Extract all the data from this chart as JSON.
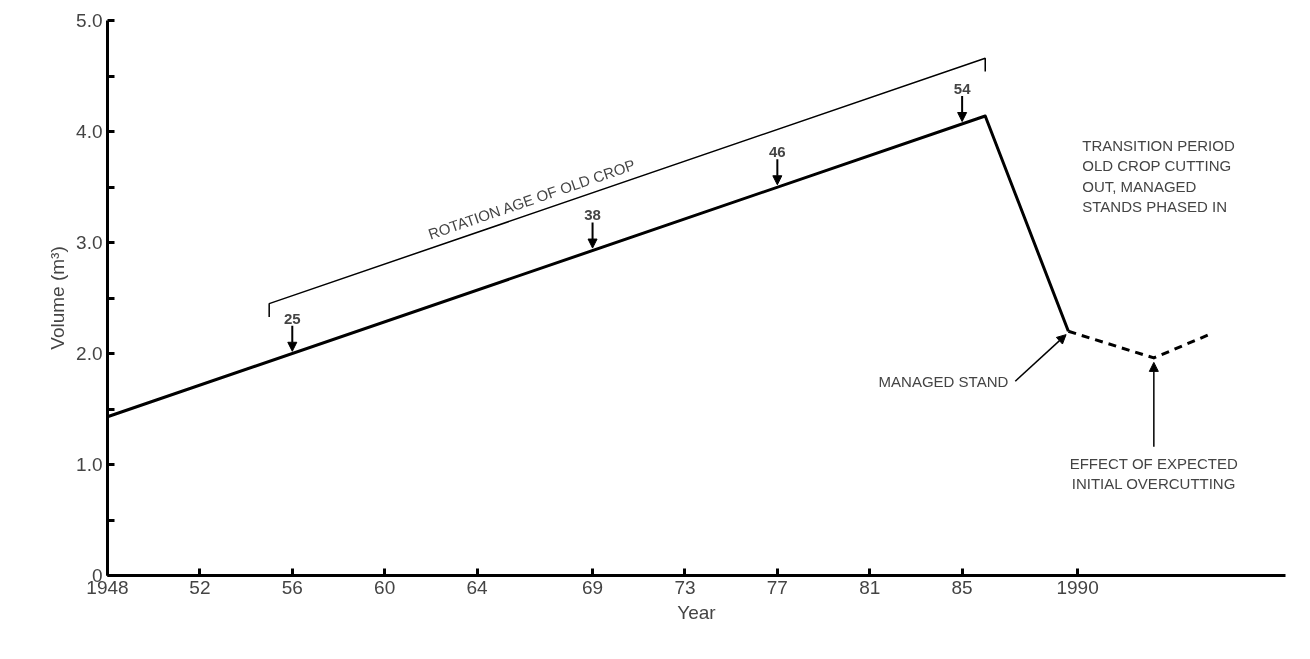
{
  "chart_data": {
    "type": "line",
    "xlabel": "Year",
    "ylabel": "Volume (m³)",
    "series": [
      {
        "color": "#000000",
        "line_style": "solid",
        "x": [
          1948,
          1986,
          1989.6
        ],
        "values": [
          1.43,
          4.14,
          2.2
        ]
      },
      {
        "color": "#000000",
        "line_style": "dashed",
        "x": [
          1989.6,
          1993.3,
          1995.8
        ],
        "values": [
          2.2,
          1.96,
          2.18
        ]
      }
    ],
    "xlim": [
      1948,
      1999
    ],
    "ylim": [
      0,
      5
    ],
    "xticks": [
      1948,
      {
        "value": 1952,
        "label": "52"
      },
      {
        "value": 1956,
        "label": "56"
      },
      {
        "value": 1960,
        "label": "60"
      },
      {
        "value": 1964,
        "label": "64"
      },
      {
        "value": 1969,
        "label": "69"
      },
      {
        "value": 1973,
        "label": "73"
      },
      {
        "value": 1977,
        "label": "77"
      },
      {
        "value": 1981,
        "label": "81"
      },
      {
        "value": 1985,
        "label": "85"
      },
      1990
    ],
    "yticks": [
      {
        "value": 0,
        "label": "0"
      },
      {
        "value": 0.5,
        "label": null
      },
      {
        "value": 1,
        "label": "1.0"
      },
      {
        "value": 1.5,
        "label": null
      },
      {
        "value": 2,
        "label": "2.0"
      },
      {
        "value": 2.5,
        "label": null
      },
      {
        "value": 3,
        "label": "3.0"
      },
      {
        "value": 3.5,
        "label": null
      },
      {
        "value": 4,
        "label": "4.0"
      },
      {
        "value": 4.5,
        "label": null
      },
      {
        "value": 5,
        "label": "5.0"
      }
    ],
    "grid": false,
    "marker": "none",
    "annotations": [
      {
        "text": "25",
        "x": 1956,
        "y": 2.0
      },
      {
        "text": "38",
        "x": 1969,
        "y": 2.93
      },
      {
        "text": "46",
        "x": 1977,
        "y": 3.5
      },
      {
        "text": "54",
        "x": 1985,
        "y": 4.07
      },
      "ROTATION AGE OF OLD CROP",
      "TRANSITION PERIOD\nOLD CROP CUTTING\nOUT, MANAGED\nSTANDS PHASED IN",
      {
        "text": "MANAGED STAND",
        "x": 1989.6,
        "y": 2.2
      },
      {
        "text": "EFFECT OF EXPECTED\nINITIAL OVERCUTTING",
        "x": 1993.3,
        "y": 1.96
      }
    ]
  }
}
